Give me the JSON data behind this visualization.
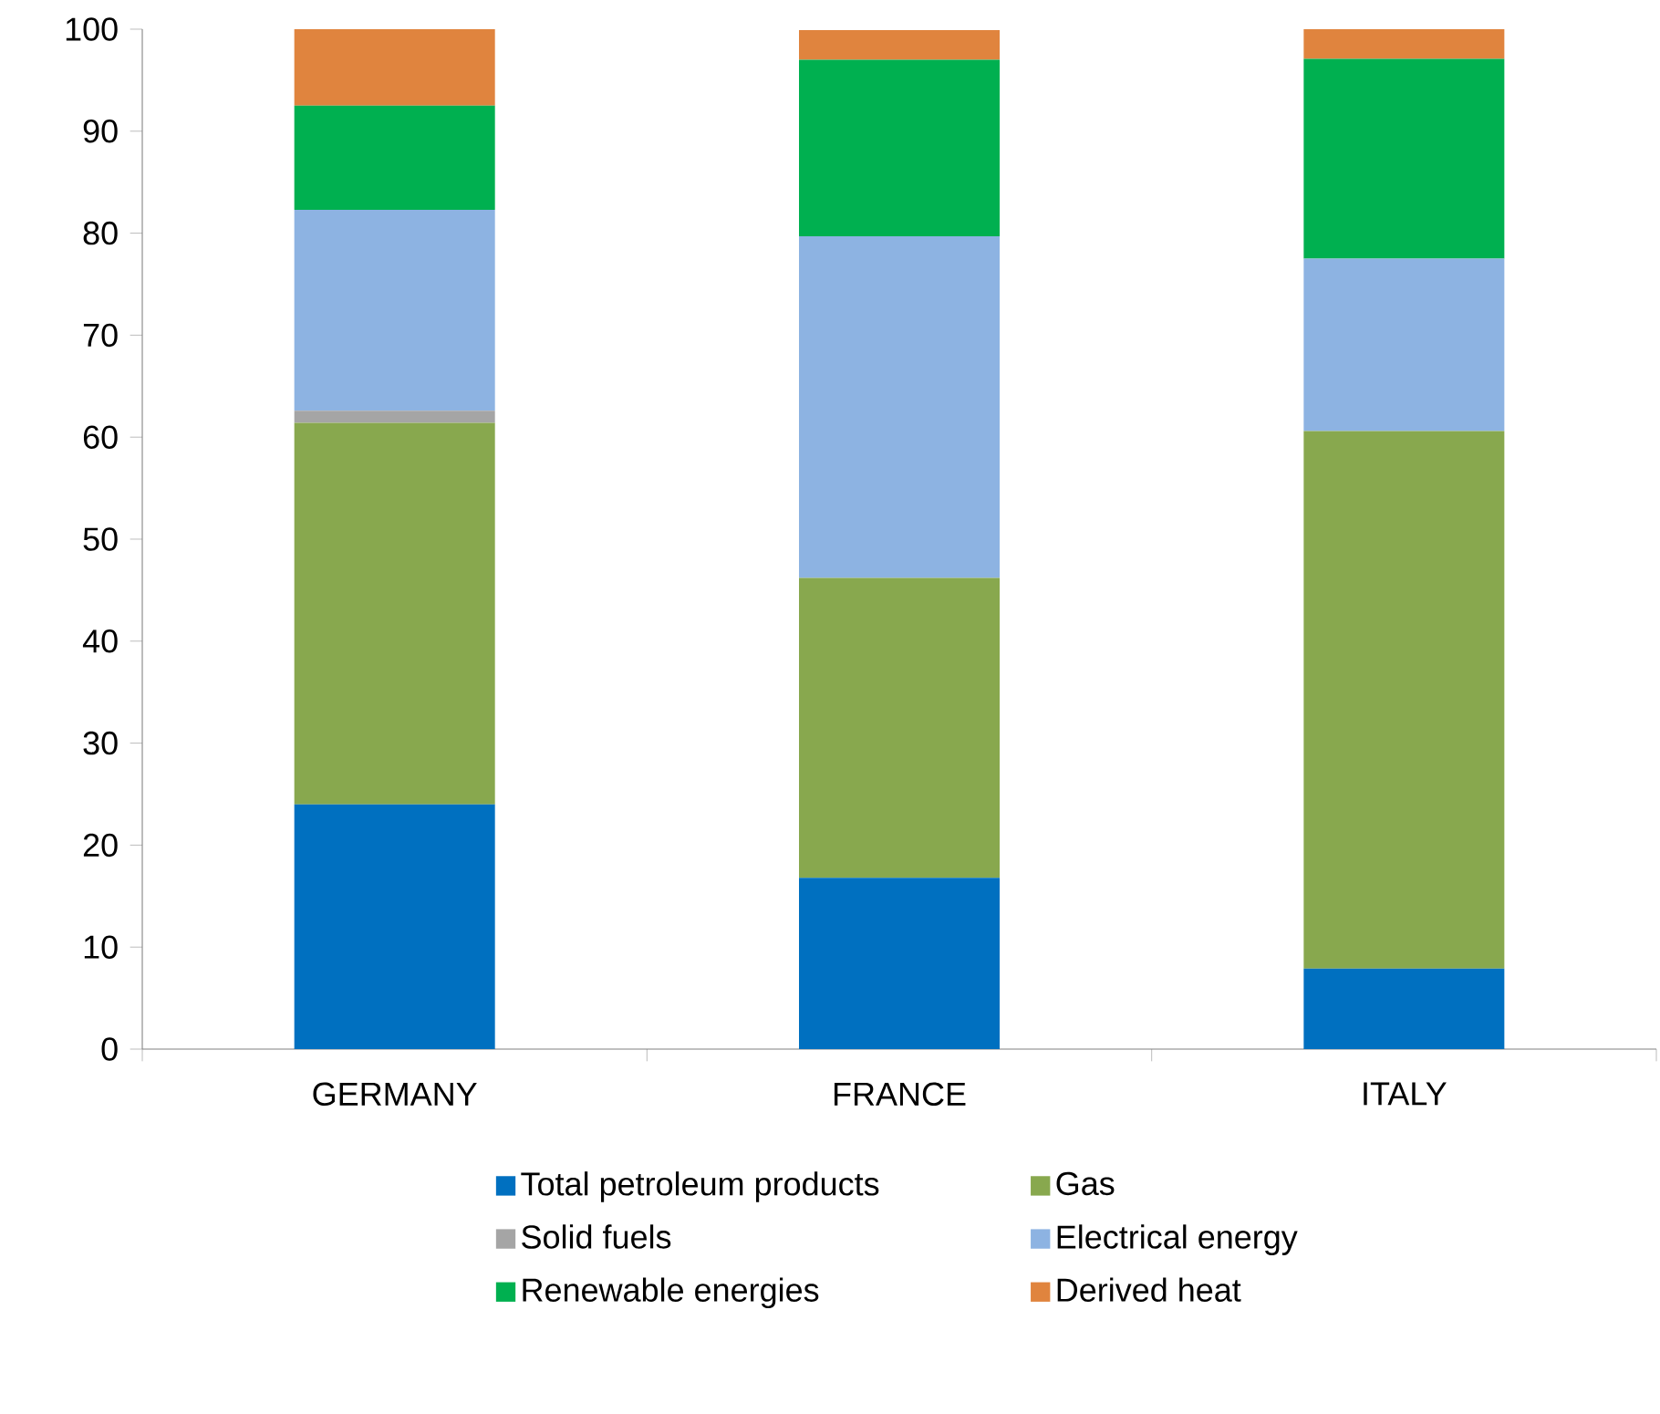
{
  "chart_data": {
    "type": "bar",
    "stacked": true,
    "categories": [
      "GERMANY",
      "FRANCE",
      "ITALY"
    ],
    "series": [
      {
        "name": "Total petroleum products",
        "color": "#0070c0",
        "values": [
          24.0,
          16.8,
          7.9
        ]
      },
      {
        "name": "Gas",
        "color": "#88a84e",
        "values": [
          37.4,
          29.4,
          52.7
        ]
      },
      {
        "name": "Solid fuels",
        "color": "#a5a5a5",
        "values": [
          1.2,
          null,
          0
        ]
      },
      {
        "name": "Electrical energy",
        "color": "#8db3e2",
        "values": [
          19.7,
          33.5,
          16.9
        ]
      },
      {
        "name": "Renewable energies",
        "color": "#00b050",
        "values": [
          10.2,
          17.3,
          19.6
        ]
      },
      {
        "name": "Derived heat",
        "color": "#e0843e",
        "values": [
          7.5,
          2.9,
          2.9
        ]
      }
    ],
    "ylim": [
      0,
      100
    ],
    "yticks": [
      0,
      10,
      20,
      30,
      40,
      50,
      60,
      70,
      80,
      90,
      100
    ],
    "grid": false,
    "legend": "bottom"
  }
}
